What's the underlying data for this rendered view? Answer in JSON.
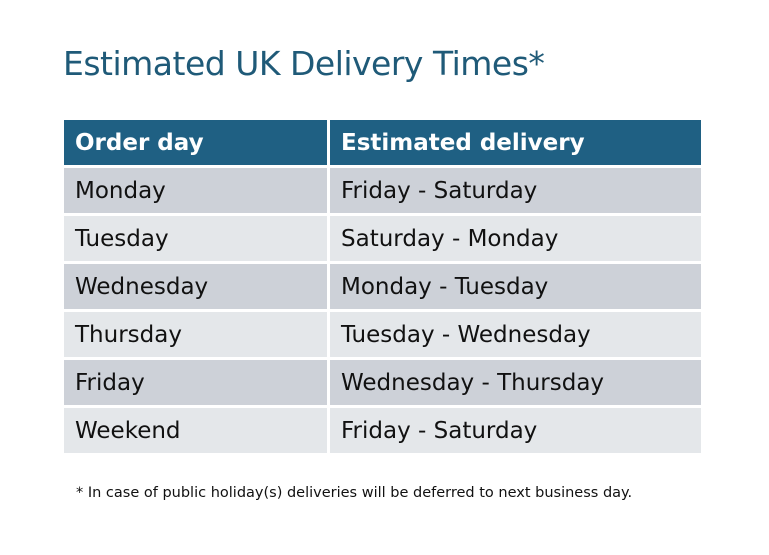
{
  "title": "Estimated UK Delivery Times*",
  "table": {
    "headers": [
      "Order day",
      "Estimated delivery"
    ],
    "rows": [
      [
        "Monday",
        "Friday - Saturday"
      ],
      [
        "Tuesday",
        "Saturday - Monday"
      ],
      [
        "Wednesday",
        "Monday - Tuesday"
      ],
      [
        "Thursday",
        "Tuesday - Wednesday"
      ],
      [
        "Friday",
        "Wednesday - Thursday"
      ],
      [
        "Weekend",
        "Friday - Saturday"
      ]
    ]
  },
  "footnote": "* In case of public holiday(s) deliveries will be deferred to next business day.",
  "colors": {
    "header": "#1f6083",
    "title": "#1f5a78",
    "row_odd": "#cdd1d8",
    "row_even": "#e4e7ea"
  }
}
